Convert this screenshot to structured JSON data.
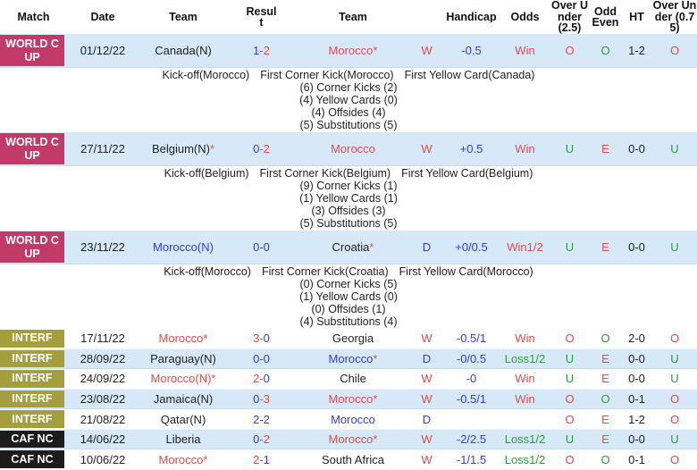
{
  "colors": {
    "text_red": "#e24c4c",
    "text_blue": "#3a3ad9",
    "text_green": "#2f9a44",
    "row_blue": "#d7e9f8",
    "badge_world_cup": "#c23a68",
    "badge_interf": "#a49e3d",
    "badge_caf_nc": "#1c1c1c"
  },
  "header": {
    "labels": [
      "Match",
      "Date",
      "Team",
      "Result",
      "Team",
      "Handicap",
      "Odds",
      "Over Under (2.5)",
      "Odd Even",
      "HT",
      "Over Under (0.75)"
    ]
  },
  "rows": [
    {
      "competition": {
        "label": "WORLD CUP",
        "key": "worldcup"
      },
      "date": "01/12/22",
      "home": {
        "name": "Canada(N)",
        "color": "black",
        "star": false
      },
      "score": {
        "home": "1",
        "home_color": "blue",
        "away": "2",
        "away_color": "red",
        "dash_color": "red"
      },
      "away": {
        "name": "Morocco",
        "color": "red",
        "star": true
      },
      "result": "W",
      "handicap": "-0.5",
      "odds": "Win",
      "ou25": "O",
      "oddeven": "O",
      "ht": "1-2",
      "ou075": "O",
      "bg": "blue",
      "detail": {
        "kickoff": "Kick-off(Morocco)",
        "first_corner": "First Corner Kick(Morocco)",
        "first_yellow": "First Yellow Card(Canada)",
        "stats": [
          "(6) Corner Kicks (2)",
          "(4) Yellow Cards (0)",
          "(4) Offsides (4)",
          "(5) Substitutions (5)"
        ]
      }
    },
    {
      "competition": {
        "label": "WORLD CUP",
        "key": "worldcup"
      },
      "date": "27/11/22",
      "home": {
        "name": "Belgium(N)",
        "color": "black",
        "star": true
      },
      "score": {
        "home": "0",
        "home_color": "blue",
        "away": "2",
        "away_color": "red",
        "dash_color": "red"
      },
      "away": {
        "name": "Morocco",
        "color": "red",
        "star": false
      },
      "result": "W",
      "handicap": "+0.5",
      "odds": "Win",
      "ou25": "U",
      "oddeven": "E",
      "ht": "0-0",
      "ou075": "U",
      "bg": "blue",
      "detail": {
        "kickoff": "Kick-off(Belgium)",
        "first_corner": "First Corner Kick(Belgium)",
        "first_yellow": "First Yellow Card(Belgium)",
        "stats": [
          "(9) Corner Kicks (1)",
          "(1) Yellow Cards (1)",
          "(3) Offsides (3)",
          "(5) Substitutions (5)"
        ]
      }
    },
    {
      "competition": {
        "label": "WORLD CUP",
        "key": "worldcup"
      },
      "date": "23/11/22",
      "home": {
        "name": "Morocco(N)",
        "color": "blue",
        "star": false
      },
      "score": {
        "home": "0",
        "home_color": "blue",
        "away": "0",
        "away_color": "blue",
        "dash_color": "blue"
      },
      "away": {
        "name": "Croatia",
        "color": "black",
        "star": true
      },
      "result": "D",
      "handicap": "+0/0.5",
      "odds": "Win1/2",
      "ou25": "U",
      "oddeven": "E",
      "ht": "0-0",
      "ou075": "U",
      "bg": "blue",
      "detail": {
        "kickoff": "Kick-off(Morocco)",
        "first_corner": "First Corner Kick(Croatia)",
        "first_yellow": "First Yellow Card(Morocco)",
        "stats": [
          "(0) Corner Kicks (5)",
          "(1) Yellow Cards (0)",
          "(0) Offsides (1)",
          "(4) Substitutions (4)"
        ]
      }
    },
    {
      "competition": {
        "label": "INTERF",
        "key": "interf"
      },
      "date": "17/11/22",
      "home": {
        "name": "Morocco",
        "color": "red",
        "star": true
      },
      "score": {
        "home": "3",
        "home_color": "red",
        "away": "0",
        "away_color": "blue",
        "dash_color": "red"
      },
      "away": {
        "name": "Georgia",
        "color": "black",
        "star": false
      },
      "result": "W",
      "handicap": "-0.5/1",
      "odds": "Win",
      "ou25": "O",
      "oddeven": "O",
      "ht": "2-0",
      "ou075": "O",
      "bg": "white"
    },
    {
      "competition": {
        "label": "INTERF",
        "key": "interf"
      },
      "date": "28/09/22",
      "home": {
        "name": "Paraguay(N)",
        "color": "black",
        "star": false
      },
      "score": {
        "home": "0",
        "home_color": "blue",
        "away": "0",
        "away_color": "blue",
        "dash_color": "blue"
      },
      "away": {
        "name": "Morocco",
        "color": "blue",
        "star": true
      },
      "result": "D",
      "handicap": "-0/0.5",
      "odds": "Loss1/2",
      "ou25": "U",
      "oddeven": "E",
      "ht": "0-0",
      "ou075": "U",
      "bg": "blue"
    },
    {
      "competition": {
        "label": "INTERF",
        "key": "interf"
      },
      "date": "24/09/22",
      "home": {
        "name": "Morocco(N)",
        "color": "red",
        "star": true
      },
      "score": {
        "home": "2",
        "home_color": "red",
        "away": "0",
        "away_color": "blue",
        "dash_color": "red"
      },
      "away": {
        "name": "Chile",
        "color": "black",
        "star": false
      },
      "result": "W",
      "handicap": "-0",
      "odds": "Win",
      "ou25": "U",
      "oddeven": "E",
      "ht": "0-0",
      "ou075": "U",
      "bg": "white"
    },
    {
      "competition": {
        "label": "INTERF",
        "key": "interf"
      },
      "date": "23/08/22",
      "home": {
        "name": "Jamaica(N)",
        "color": "black",
        "star": false
      },
      "score": {
        "home": "0",
        "home_color": "blue",
        "away": "3",
        "away_color": "red",
        "dash_color": "red"
      },
      "away": {
        "name": "Morocco",
        "color": "red",
        "star": true
      },
      "result": "W",
      "handicap": "-0.5/1",
      "odds": "Win",
      "ou25": "O",
      "oddeven": "O",
      "ht": "0-1",
      "ou075": "O",
      "bg": "blue"
    },
    {
      "competition": {
        "label": "INTERF",
        "key": "interf"
      },
      "date": "21/08/22",
      "home": {
        "name": "Qatar(N)",
        "color": "black",
        "star": false
      },
      "score": {
        "home": "2",
        "home_color": "blue",
        "away": "2",
        "away_color": "blue",
        "dash_color": "blue"
      },
      "away": {
        "name": "Morocco",
        "color": "blue",
        "star": false
      },
      "result": "D",
      "handicap": "",
      "odds": "",
      "ou25": "O",
      "oddeven": "E",
      "ht": "1-2",
      "ou075": "O",
      "bg": "white"
    },
    {
      "competition": {
        "label": "CAF NC",
        "key": "cafnc"
      },
      "date": "14/06/22",
      "home": {
        "name": "Liberia",
        "color": "black",
        "star": false
      },
      "score": {
        "home": "0",
        "home_color": "blue",
        "away": "2",
        "away_color": "red",
        "dash_color": "red"
      },
      "away": {
        "name": "Morocco",
        "color": "red",
        "star": true
      },
      "result": "W",
      "handicap": "-2/2.5",
      "odds": "Loss1/2",
      "ou25": "U",
      "oddeven": "E",
      "ht": "0-0",
      "ou075": "U",
      "bg": "blue"
    },
    {
      "competition": {
        "label": "CAF NC",
        "key": "cafnc"
      },
      "date": "10/06/22",
      "home": {
        "name": "Morocco",
        "color": "red",
        "star": true
      },
      "score": {
        "home": "2",
        "home_color": "red",
        "away": "1",
        "away_color": "blue",
        "dash_color": "red"
      },
      "away": {
        "name": "South Africa",
        "color": "black",
        "star": false
      },
      "result": "W",
      "handicap": "-1/1.5",
      "odds": "Loss1/2",
      "ou25": "O",
      "oddeven": "O",
      "ht": "0-1",
      "ou075": "O",
      "bg": "white"
    }
  ]
}
